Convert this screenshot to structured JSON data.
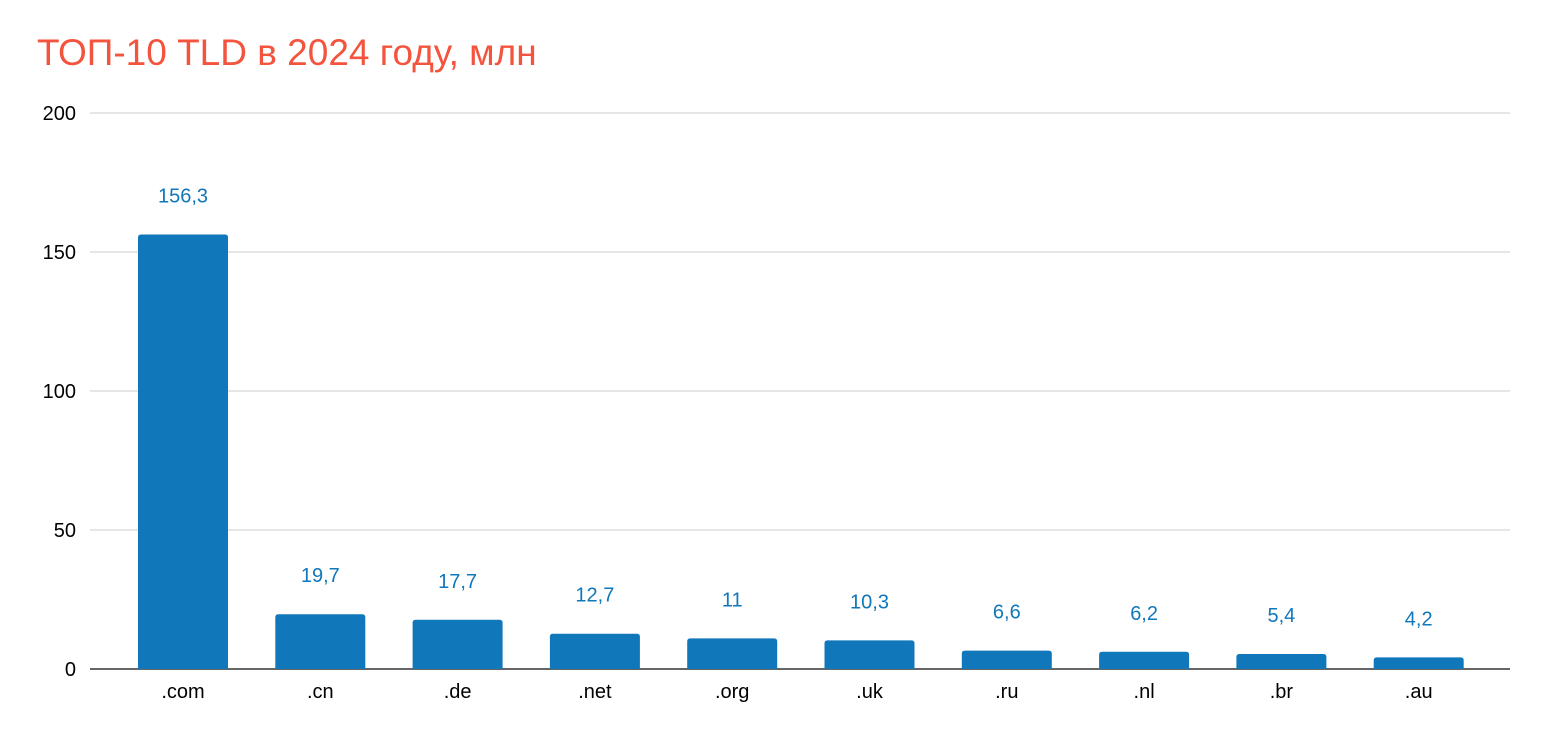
{
  "chart_data": {
    "type": "bar",
    "title": "ТОП-10 TLD в 2024 году, млн",
    "categories": [
      ".com",
      ".cn",
      ".de",
      ".net",
      ".org",
      ".uk",
      ".ru",
      ".nl",
      ".br",
      ".au"
    ],
    "values": [
      156.3,
      19.7,
      17.7,
      12.7,
      11,
      10.3,
      6.6,
      6.2,
      5.4,
      4.2
    ],
    "data_labels": [
      "156,3",
      "19,7",
      "17,7",
      "12,7",
      "11",
      "10,3",
      "6,6",
      "6,2",
      "5,4",
      "4,2"
    ],
    "xlabel": "",
    "ylabel": "",
    "ylim": [
      0,
      200
    ],
    "yticks": [
      "0",
      "50",
      "100",
      "150",
      "200"
    ],
    "grid": true,
    "legend": "none",
    "colors": {
      "bar": "#1077BA",
      "title": "#F4533D",
      "data_label": "#1077BA",
      "grid": "#CCCCCC"
    }
  }
}
